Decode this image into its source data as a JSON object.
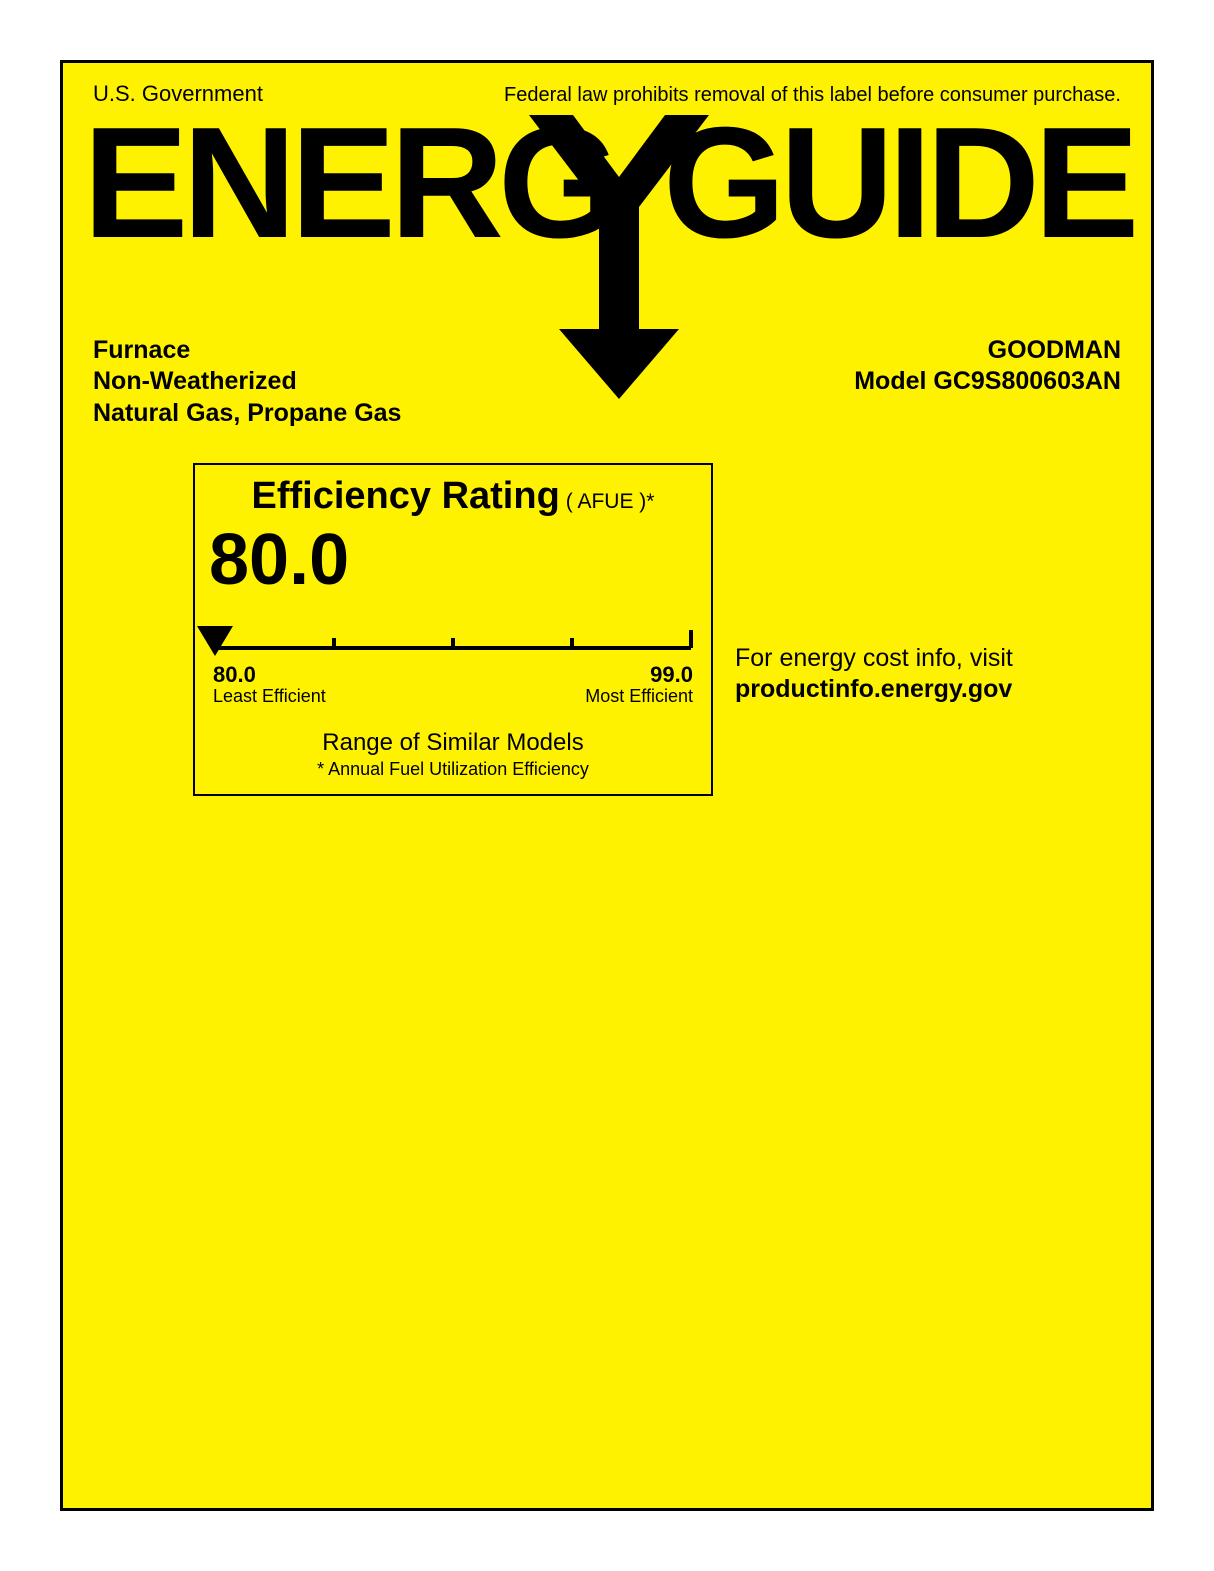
{
  "colors": {
    "background": "#fff200",
    "border": "#000000",
    "text": "#000000",
    "page": "#ffffff"
  },
  "header": {
    "gov": "U.S. Government",
    "law": "Federal law prohibits removal of this label before consumer purchase."
  },
  "logo": {
    "text": "ENERGYGUIDE"
  },
  "product": {
    "type_line1": "Furnace",
    "type_line2": "Non-Weatherized",
    "type_line3": "Natural Gas, Propane Gas",
    "brand": "GOODMAN",
    "model": "Model GC9S800603AN"
  },
  "rating": {
    "title": "Efficiency Rating",
    "subtitle": "( AFUE )*",
    "value": "80.0",
    "scale": {
      "min_value": 80.0,
      "max_value": 99.0,
      "min_label": "80.0",
      "max_label": "99.0",
      "min_desc": "Least Efficient",
      "max_desc": "Most Efficient",
      "tick_count": 5,
      "pointer_position_pct": 0,
      "line_color": "#000000",
      "line_width": 4,
      "tick_height_major": 22,
      "tick_height_minor": 10
    },
    "range_text": "Range of Similar Models",
    "footnote": "* Annual Fuel Utilization Efficiency"
  },
  "side": {
    "line1": "For energy cost info, visit",
    "url": "productinfo.energy.gov"
  }
}
